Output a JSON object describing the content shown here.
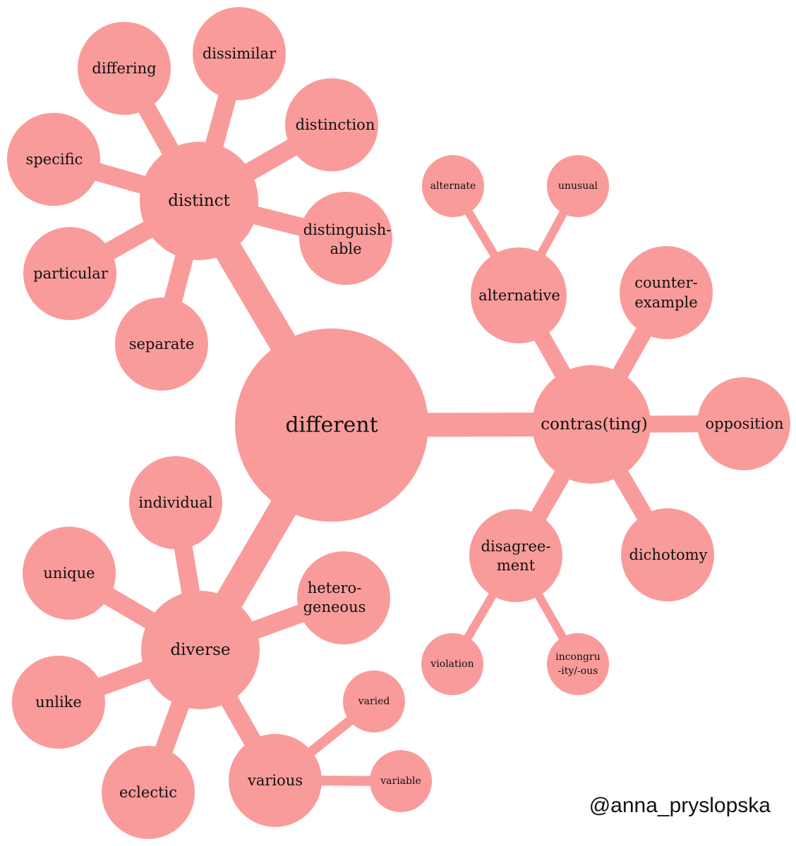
{
  "colors": {
    "node_fill": "#f99b9b",
    "label_text": "#111111",
    "background": "#ffffff"
  },
  "center": {
    "label": "different"
  },
  "branches": {
    "distinct": {
      "label": "distinct",
      "children": {
        "differing": "differing",
        "dissimilar": "dissimilar",
        "distinction": "distinction",
        "specific": "specific",
        "distinguishable_1": "distinguish-",
        "distinguishable_2": "able",
        "particular": "particular",
        "separate": "separate"
      }
    },
    "contrasting": {
      "label": "contras(ting)",
      "children": {
        "alternative": "alternative",
        "counterexample_1": "counter-",
        "counterexample_2": "example",
        "opposition": "opposition",
        "disagreement_1": "disagree-",
        "disagreement_2": "ment",
        "dichotomy": "dichotomy"
      },
      "grandchildren": {
        "alternate": "alternate",
        "unusual": "unusual",
        "violation": "violation",
        "incongruity_1": "incongru",
        "incongruity_2": "-ity/-ous"
      }
    },
    "diverse": {
      "label": "diverse",
      "children": {
        "individual": "individual",
        "unique": "unique",
        "heterogeneous_1": "hetero-",
        "heterogeneous_2": "geneous",
        "unlike": "unlike",
        "eclectic": "eclectic",
        "various": "various"
      },
      "grandchildren": {
        "varied": "varied",
        "variable": "variable"
      }
    }
  },
  "credit": "@anna_pryslopska"
}
